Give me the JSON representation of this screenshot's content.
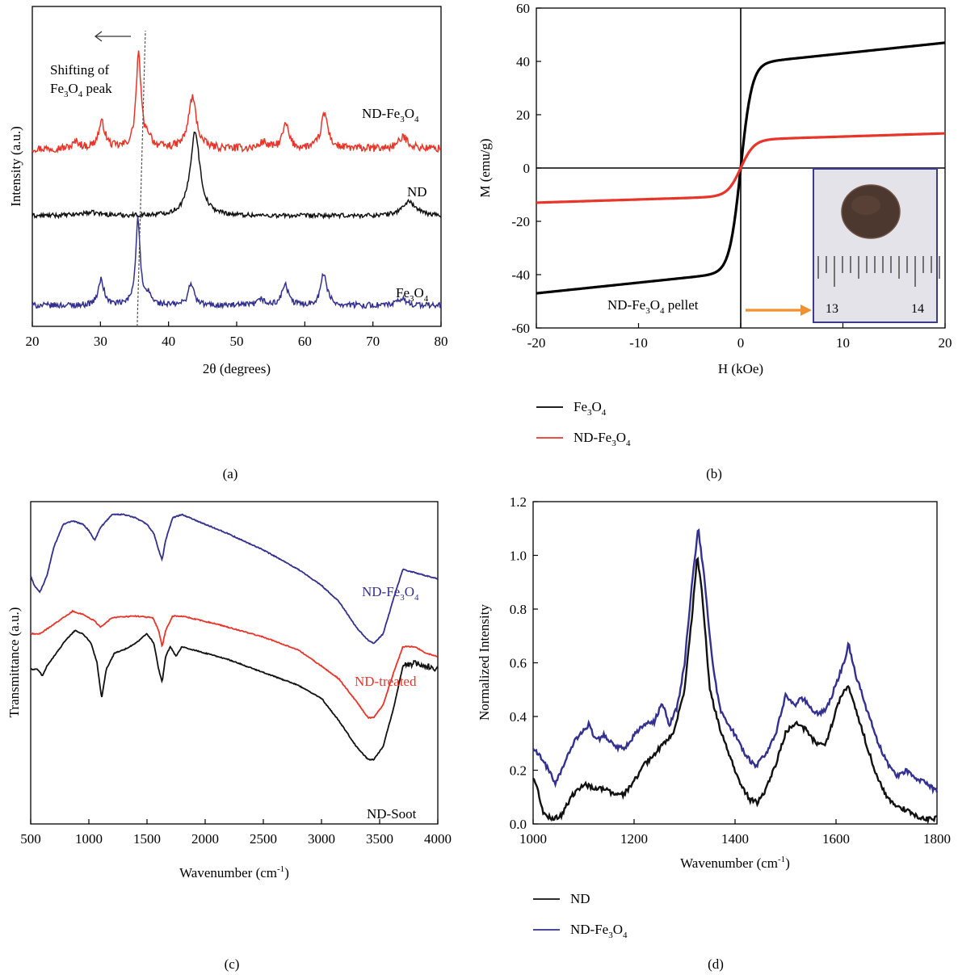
{
  "chart_data": [
    {
      "id": "a",
      "panel_label": "(a)",
      "type": "line",
      "xlabel": "2θ (degrees)",
      "ylabel": "Intensity (a.u.)",
      "xlim": [
        20,
        80
      ],
      "xticks": [
        20,
        30,
        40,
        50,
        60,
        70,
        80
      ],
      "ylim": [
        0,
        1
      ],
      "grid": false,
      "annotation": {
        "lines": [
          "Shifting of",
          "Fe3O4 peak"
        ],
        "arrow": "left",
        "dashed_line": [
          35.4,
          36.6
        ]
      },
      "series": [
        {
          "name": "ND-Fe3O4",
          "color": "#e8352a",
          "baseline": 0.555,
          "noise": 0.012,
          "peaks": [
            [
              26.5,
              0.02,
              0.6
            ],
            [
              30.2,
              0.08,
              0.6
            ],
            [
              35.6,
              0.29,
              0.45
            ],
            [
              37.1,
              0.03,
              0.5
            ],
            [
              43.5,
              0.16,
              0.7
            ],
            [
              53.9,
              0.02,
              0.6
            ],
            [
              57.2,
              0.075,
              0.55
            ],
            [
              62.9,
              0.11,
              0.6
            ],
            [
              74.5,
              0.035,
              0.9
            ]
          ]
        },
        {
          "name": "ND",
          "color": "#111111",
          "baseline": 0.345,
          "noise": 0.007,
          "peaks": [
            [
              28.5,
              0.01,
              2.0
            ],
            [
              43.9,
              0.265,
              0.85
            ],
            [
              75.3,
              0.045,
              1.2
            ]
          ]
        },
        {
          "name": "Fe3O4",
          "color": "#33308f",
          "baseline": 0.065,
          "noise": 0.009,
          "peaks": [
            [
              30.1,
              0.08,
              0.5
            ],
            [
              35.5,
              0.27,
              0.4
            ],
            [
              37.1,
              0.03,
              0.45
            ],
            [
              43.3,
              0.07,
              0.5
            ],
            [
              53.6,
              0.02,
              0.5
            ],
            [
              57.1,
              0.065,
              0.55
            ],
            [
              62.8,
              0.1,
              0.55
            ],
            [
              74.3,
              0.02,
              0.8
            ]
          ]
        }
      ]
    },
    {
      "id": "b",
      "panel_label": "(b)",
      "type": "line",
      "xlabel": "H (kOe)",
      "ylabel": "M (emu/g)",
      "xlim": [
        -20,
        20
      ],
      "xticks": [
        -20,
        -10,
        0,
        10,
        20
      ],
      "ylim": [
        -60,
        60
      ],
      "yticks": [
        -60,
        -40,
        -20,
        0,
        20,
        40,
        60
      ],
      "grid": false,
      "legend": "bottom",
      "inset_label": "ND-Fe3O4 pellet",
      "inset_ruler_labels": [
        "13",
        "14"
      ],
      "series": [
        {
          "name": "Fe3O4",
          "color": "#000000",
          "ms": 47,
          "h0": 1.1,
          "slope": 0.4
        },
        {
          "name": "ND-Fe3O4",
          "color": "#e8352a",
          "ms": 13,
          "h0": 1.3,
          "slope": 0.12
        }
      ]
    },
    {
      "id": "c",
      "panel_label": "(c)",
      "type": "line",
      "xlabel": "Wavenumber (cm-1)",
      "ylabel": "Transmittance (a.u.)",
      "xlim": [
        500,
        4000
      ],
      "xticks": [
        500,
        1000,
        1500,
        2000,
        2500,
        3000,
        3500,
        4000
      ],
      "ylim": [
        0,
        1
      ],
      "grid": false,
      "series": [
        {
          "name": "ND-Fe3O4",
          "color": "#33308f",
          "points": [
            [
              500,
              0.77
            ],
            [
              530,
              0.74
            ],
            [
              580,
              0.72
            ],
            [
              640,
              0.77
            ],
            [
              700,
              0.86
            ],
            [
              780,
              0.93
            ],
            [
              860,
              0.94
            ],
            [
              950,
              0.93
            ],
            [
              1000,
              0.91
            ],
            [
              1050,
              0.88
            ],
            [
              1100,
              0.92
            ],
            [
              1200,
              0.96
            ],
            [
              1300,
              0.96
            ],
            [
              1400,
              0.95
            ],
            [
              1500,
              0.93
            ],
            [
              1560,
              0.9
            ],
            [
              1600,
              0.85
            ],
            [
              1630,
              0.82
            ],
            [
              1660,
              0.88
            ],
            [
              1720,
              0.95
            ],
            [
              1800,
              0.96
            ],
            [
              2000,
              0.93
            ],
            [
              2200,
              0.9
            ],
            [
              2500,
              0.85
            ],
            [
              2800,
              0.79
            ],
            [
              3000,
              0.74
            ],
            [
              3150,
              0.69
            ],
            [
              3300,
              0.61
            ],
            [
              3400,
              0.57
            ],
            [
              3450,
              0.56
            ],
            [
              3530,
              0.59
            ],
            [
              3620,
              0.7
            ],
            [
              3700,
              0.79
            ],
            [
              3800,
              0.78
            ],
            [
              3900,
              0.77
            ],
            [
              4000,
              0.76
            ]
          ]
        },
        {
          "name": "ND-treated",
          "color": "#e8352a",
          "points": [
            [
              500,
              0.59
            ],
            [
              580,
              0.59
            ],
            [
              700,
              0.62
            ],
            [
              860,
              0.66
            ],
            [
              950,
              0.65
            ],
            [
              1050,
              0.63
            ],
            [
              1100,
              0.61
            ],
            [
              1200,
              0.64
            ],
            [
              1400,
              0.645
            ],
            [
              1550,
              0.64
            ],
            [
              1600,
              0.6
            ],
            [
              1630,
              0.55
            ],
            [
              1660,
              0.6
            ],
            [
              1720,
              0.645
            ],
            [
              1800,
              0.645
            ],
            [
              2100,
              0.62
            ],
            [
              2500,
              0.58
            ],
            [
              2800,
              0.54
            ],
            [
              3000,
              0.49
            ],
            [
              3150,
              0.45
            ],
            [
              3300,
              0.38
            ],
            [
              3400,
              0.33
            ],
            [
              3450,
              0.33
            ],
            [
              3530,
              0.37
            ],
            [
              3620,
              0.47
            ],
            [
              3700,
              0.55
            ],
            [
              3800,
              0.55
            ],
            [
              3900,
              0.53
            ],
            [
              4000,
              0.52
            ]
          ]
        },
        {
          "name": "ND-Soot",
          "color": "#111111",
          "points": [
            [
              500,
              0.48
            ],
            [
              560,
              0.48
            ],
            [
              600,
              0.46
            ],
            [
              640,
              0.49
            ],
            [
              700,
              0.52
            ],
            [
              800,
              0.57
            ],
            [
              880,
              0.6
            ],
            [
              950,
              0.59
            ],
            [
              1020,
              0.56
            ],
            [
              1070,
              0.5
            ],
            [
              1110,
              0.39
            ],
            [
              1150,
              0.48
            ],
            [
              1220,
              0.53
            ],
            [
              1300,
              0.54
            ],
            [
              1400,
              0.56
            ],
            [
              1500,
              0.59
            ],
            [
              1560,
              0.56
            ],
            [
              1600,
              0.48
            ],
            [
              1630,
              0.44
            ],
            [
              1660,
              0.52
            ],
            [
              1700,
              0.55
            ],
            [
              1750,
              0.52
            ],
            [
              1800,
              0.55
            ],
            [
              1900,
              0.54
            ],
            [
              2200,
              0.51
            ],
            [
              2500,
              0.47
            ],
            [
              2800,
              0.43
            ],
            [
              3000,
              0.39
            ],
            [
              3150,
              0.32
            ],
            [
              3300,
              0.24
            ],
            [
              3400,
              0.2
            ],
            [
              3450,
              0.2
            ],
            [
              3530,
              0.24
            ],
            [
              3620,
              0.36
            ],
            [
              3700,
              0.49
            ],
            [
              3800,
              0.5
            ],
            [
              3900,
              0.49
            ],
            [
              4000,
              0.48
            ]
          ]
        }
      ]
    },
    {
      "id": "d",
      "panel_label": "(d)",
      "type": "line",
      "xlabel": "Wavenumber (cm-1)",
      "ylabel": "Normalized Intensity",
      "xlim": [
        1000,
        1800
      ],
      "xticks": [
        1000,
        1200,
        1400,
        1600,
        1800
      ],
      "ylim": [
        0,
        1.2
      ],
      "yticks": [
        0.0,
        0.2,
        0.4,
        0.6,
        0.8,
        1.0,
        1.2
      ],
      "grid": false,
      "legend": "bottom",
      "series": [
        {
          "name": "ND",
          "color": "#111111",
          "points": [
            [
              1000,
              0.17
            ],
            [
              1010,
              0.12
            ],
            [
              1020,
              0.04
            ],
            [
              1035,
              0.02
            ],
            [
              1055,
              0.03
            ],
            [
              1075,
              0.1
            ],
            [
              1100,
              0.15
            ],
            [
              1120,
              0.13
            ],
            [
              1140,
              0.13
            ],
            [
              1160,
              0.11
            ],
            [
              1180,
              0.11
            ],
            [
              1200,
              0.16
            ],
            [
              1220,
              0.22
            ],
            [
              1240,
              0.26
            ],
            [
              1260,
              0.3
            ],
            [
              1280,
              0.35
            ],
            [
              1300,
              0.5
            ],
            [
              1315,
              0.78
            ],
            [
              1325,
              1.0
            ],
            [
              1335,
              0.85
            ],
            [
              1350,
              0.5
            ],
            [
              1370,
              0.35
            ],
            [
              1390,
              0.25
            ],
            [
              1410,
              0.15
            ],
            [
              1430,
              0.09
            ],
            [
              1445,
              0.08
            ],
            [
              1460,
              0.12
            ],
            [
              1480,
              0.22
            ],
            [
              1500,
              0.34
            ],
            [
              1520,
              0.38
            ],
            [
              1540,
              0.35
            ],
            [
              1560,
              0.3
            ],
            [
              1580,
              0.3
            ],
            [
              1600,
              0.42
            ],
            [
              1615,
              0.5
            ],
            [
              1625,
              0.51
            ],
            [
              1640,
              0.42
            ],
            [
              1660,
              0.3
            ],
            [
              1680,
              0.18
            ],
            [
              1700,
              0.1
            ],
            [
              1720,
              0.07
            ],
            [
              1740,
              0.05
            ],
            [
              1760,
              0.03
            ],
            [
              1780,
              0.02
            ],
            [
              1800,
              0.02
            ]
          ]
        },
        {
          "name": "ND-Fe3O4",
          "color": "#33308f",
          "points": [
            [
              1000,
              0.28
            ],
            [
              1015,
              0.25
            ],
            [
              1030,
              0.2
            ],
            [
              1045,
              0.15
            ],
            [
              1060,
              0.22
            ],
            [
              1080,
              0.3
            ],
            [
              1100,
              0.35
            ],
            [
              1110,
              0.37
            ],
            [
              1125,
              0.31
            ],
            [
              1140,
              0.33
            ],
            [
              1160,
              0.29
            ],
            [
              1180,
              0.28
            ],
            [
              1200,
              0.33
            ],
            [
              1220,
              0.37
            ],
            [
              1240,
              0.38
            ],
            [
              1255,
              0.45
            ],
            [
              1270,
              0.37
            ],
            [
              1285,
              0.43
            ],
            [
              1300,
              0.6
            ],
            [
              1315,
              0.9
            ],
            [
              1327,
              1.1
            ],
            [
              1340,
              0.9
            ],
            [
              1355,
              0.6
            ],
            [
              1370,
              0.43
            ],
            [
              1385,
              0.38
            ],
            [
              1400,
              0.33
            ],
            [
              1420,
              0.26
            ],
            [
              1440,
              0.21
            ],
            [
              1460,
              0.26
            ],
            [
              1480,
              0.33
            ],
            [
              1500,
              0.48
            ],
            [
              1520,
              0.44
            ],
            [
              1530,
              0.47
            ],
            [
              1545,
              0.45
            ],
            [
              1560,
              0.41
            ],
            [
              1580,
              0.42
            ],
            [
              1600,
              0.52
            ],
            [
              1615,
              0.6
            ],
            [
              1625,
              0.67
            ],
            [
              1640,
              0.55
            ],
            [
              1660,
              0.43
            ],
            [
              1680,
              0.32
            ],
            [
              1700,
              0.23
            ],
            [
              1720,
              0.18
            ],
            [
              1740,
              0.2
            ],
            [
              1760,
              0.17
            ],
            [
              1780,
              0.15
            ],
            [
              1800,
              0.12
            ]
          ]
        }
      ]
    }
  ]
}
